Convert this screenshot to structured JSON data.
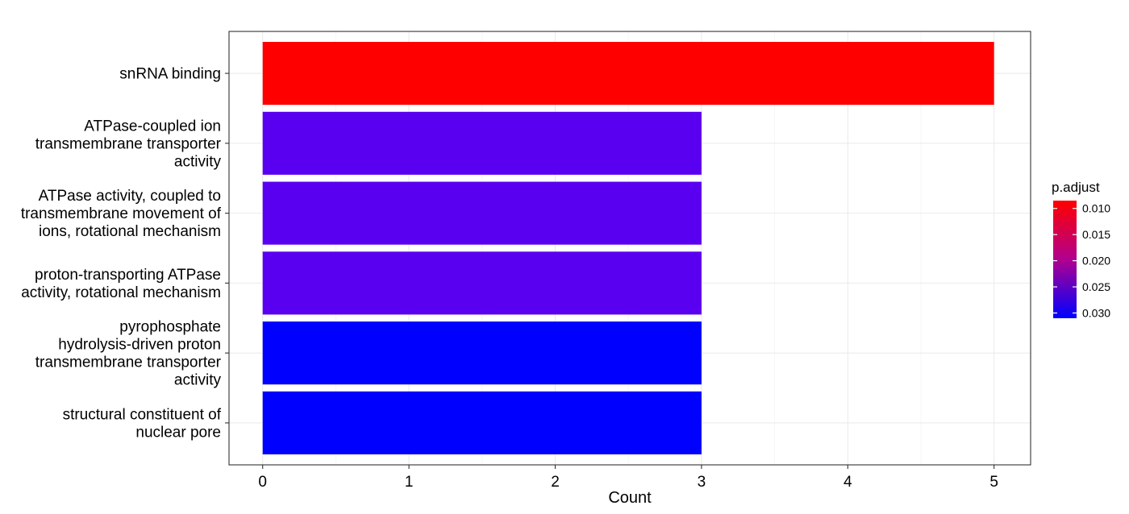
{
  "chart_data": {
    "type": "bar",
    "orientation": "horizontal",
    "categories": [
      "snRNA binding",
      "ATPase-coupled ion transmembrane transporter activity",
      "ATPase activity, coupled to transmembrane movement of ions, rotational mechanism",
      "proton-transporting ATPase activity, rotational mechanism",
      "pyrophosphate hydrolysis-driven proton transmembrane transporter activity",
      "structural constituent of nuclear pore"
    ],
    "category_lines": [
      [
        "snRNA binding"
      ],
      [
        "ATPase-coupled ion",
        "transmembrane transporter",
        "activity"
      ],
      [
        "ATPase activity, coupled to",
        "transmembrane movement of",
        "ions, rotational mechanism"
      ],
      [
        "proton-transporting ATPase",
        "activity, rotational mechanism"
      ],
      [
        "pyrophosphate",
        "hydrolysis-driven proton",
        "transmembrane transporter",
        "activity"
      ],
      [
        "structural constituent of",
        "nuclear pore"
      ]
    ],
    "values": [
      5,
      3,
      3,
      3,
      3,
      3
    ],
    "bar_colors": [
      "#FF0000",
      "#5A00F0",
      "#5A00F0",
      "#5A00F0",
      "#0000FF",
      "#0000FF"
    ],
    "xlabel": "Count",
    "ylabel": "",
    "xlim": [
      -0.23,
      5.25
    ],
    "xticks": [
      "0",
      "1",
      "2",
      "3",
      "4",
      "5"
    ],
    "grid": true,
    "legend": {
      "title": "p.adjust",
      "placement": "right",
      "range": [
        0.0085,
        0.031
      ],
      "ticks": [
        "0.010",
        "0.015",
        "0.020",
        "0.025",
        "0.030"
      ],
      "low_color": "#FF0000",
      "high_color": "#0000FF"
    }
  }
}
